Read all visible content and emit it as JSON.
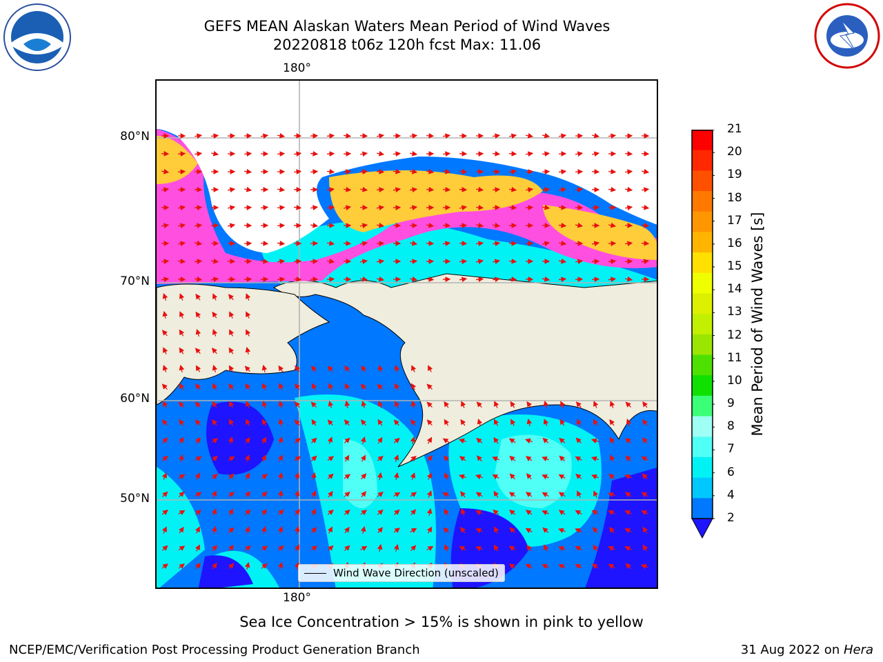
{
  "header": {
    "title_line1": "GEFS MEAN Alaskan Waters Mean Period of Wind Waves",
    "title_line2": "20220818 t06z 120h fcst   Max: 11.06"
  },
  "map": {
    "lon_label_top": "180°",
    "lon_label_bottom": "180°",
    "lat_labels": [
      "80°N",
      "70°N",
      "60°N",
      "50°N"
    ],
    "legend_text": "Wind Wave Direction (unscaled)",
    "land_color": "#efedde",
    "arrow_color": "#e8110f"
  },
  "colorbar": {
    "title": "Mean Period of Wind Waves [s]",
    "ticks": [
      "21",
      "20",
      "19",
      "18",
      "17",
      "16",
      "15",
      "14",
      "13",
      "12",
      "11",
      "10",
      "9",
      "8",
      "7",
      "6",
      "4",
      "2"
    ],
    "colors": [
      "#ff0000",
      "#ff2800",
      "#ff5000",
      "#ff7800",
      "#ff9600",
      "#ffb400",
      "#ffe000",
      "#f0ff00",
      "#dcf000",
      "#c3ef00",
      "#9ae600",
      "#4ee000",
      "#10e000",
      "#3cff78",
      "#a0fff5",
      "#50fff5",
      "#00f2f5",
      "#00c8ff",
      "#0078ff"
    ],
    "under_color": "#1e14ff"
  },
  "note": "Sea Ice Concentration > 15% is shown in pink to yellow",
  "footer": {
    "left": "NCEP/EMC/Verification Post Processing Product Generation Branch",
    "right_date": "31 Aug 2022 on ",
    "right_machine": "Hera"
  },
  "logos": {
    "left": "NOAA",
    "right": "NATIONAL WEATHER SERVICE"
  }
}
